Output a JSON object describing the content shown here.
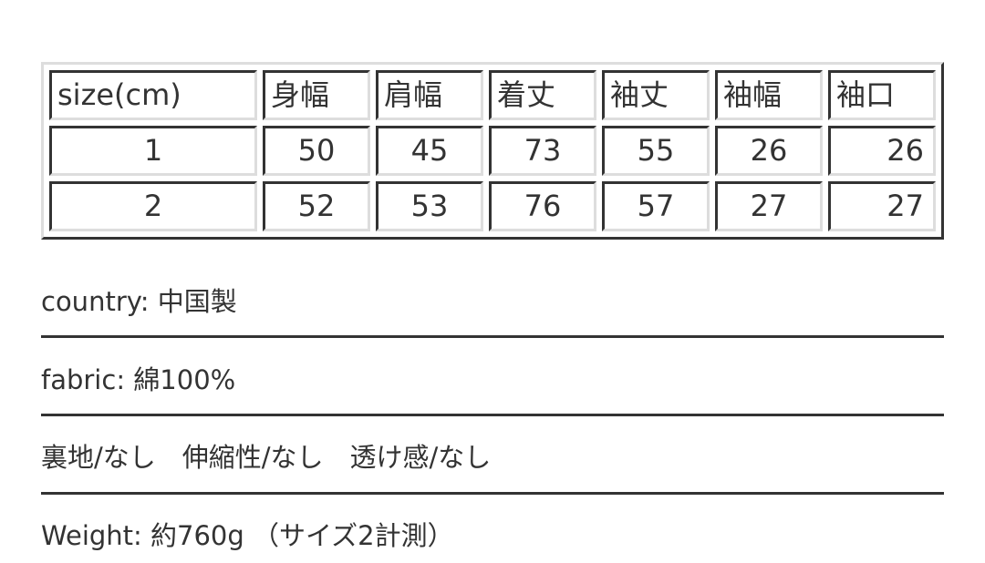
{
  "table": {
    "headers": [
      "size(cm)",
      "身幅",
      "肩幅",
      "着丈",
      "袖丈",
      "袖幅",
      "袖口"
    ],
    "rows": [
      [
        "1",
        "50",
        "45",
        "73",
        "55",
        "26",
        "26"
      ],
      [
        "2",
        "52",
        "53",
        "76",
        "57",
        "27",
        "27"
      ]
    ]
  },
  "info": {
    "country": "country: 中国製",
    "fabric": "fabric: 綿100%",
    "features": "裏地/なし　伸縮性/なし　透け感/なし",
    "weight": "Weight: 約760g （サイズ2計測）"
  }
}
